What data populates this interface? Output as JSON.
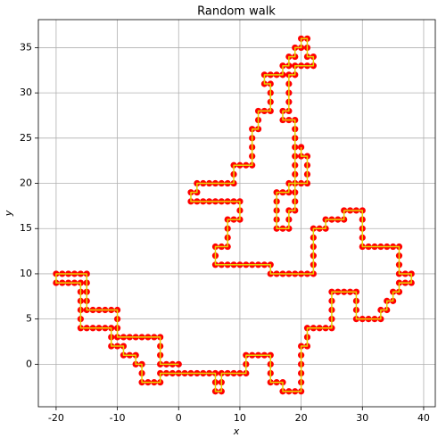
{
  "chart_data": {
    "type": "line",
    "title": "Random walk",
    "x_label": "x",
    "y_label": "y",
    "x": [
      0,
      -1,
      -2,
      -3,
      -3,
      -3,
      -3,
      -4,
      -5,
      -6,
      -7,
      -8,
      -9,
      -10,
      -10,
      -10,
      -10,
      -11,
      -12,
      -13,
      -14,
      -15,
      -15,
      -15,
      -15,
      -15,
      -16,
      -17,
      -18,
      -19,
      -20,
      -20,
      -19,
      -18,
      -17,
      -16,
      -16,
      -16,
      -16,
      -16,
      -16,
      -15,
      -14,
      -13,
      -12,
      -11,
      -11,
      -11,
      -10,
      -9,
      -9,
      -8,
      -7,
      -7,
      -6,
      -6,
      -6,
      -5,
      -4,
      -3,
      -3,
      -2,
      -1,
      0,
      1,
      2,
      3,
      4,
      5,
      6,
      6,
      6,
      7,
      7,
      7,
      8,
      9,
      10,
      11,
      11,
      11,
      12,
      13,
      14,
      15,
      15,
      15,
      15,
      16,
      17,
      17,
      18,
      19,
      20,
      20,
      20,
      20,
      20,
      20,
      21,
      21,
      21,
      22,
      23,
      24,
      25,
      25,
      25,
      25,
      25,
      26,
      27,
      28,
      29,
      29,
      29,
      29,
      30,
      31,
      32,
      33,
      33,
      34,
      34,
      35,
      35,
      36,
      36,
      37,
      38,
      38,
      37,
      36,
      36,
      36,
      36,
      35,
      34,
      33,
      32,
      31,
      30,
      30,
      30,
      30,
      30,
      29,
      28,
      27,
      27,
      26,
      25,
      24,
      24,
      23,
      22,
      22,
      22,
      22,
      22,
      22,
      21,
      20,
      19,
      18,
      17,
      16,
      15,
      15,
      14,
      13,
      12,
      11,
      10,
      9,
      8,
      7,
      6,
      6,
      6,
      7,
      8,
      8,
      8,
      8,
      9,
      10,
      10,
      10,
      9,
      8,
      7,
      6,
      5,
      4,
      3,
      2,
      2,
      3,
      3,
      4,
      5,
      6,
      7,
      8,
      9,
      9,
      9,
      10,
      11,
      12,
      12,
      12,
      12,
      12,
      13,
      13,
      13,
      14,
      15,
      15,
      15,
      15,
      14,
      14,
      15,
      16,
      17,
      17,
      18,
      18,
      19,
      19,
      20,
      20,
      21,
      21,
      21,
      22,
      22,
      21,
      20,
      19,
      19,
      18,
      18,
      18,
      18,
      18,
      17,
      17,
      18,
      19,
      19,
      19,
      19,
      19,
      19,
      19,
      19,
      19,
      19,
      19,
      18,
      18,
      18,
      17,
      16,
      16,
      16,
      16,
      16,
      17,
      18,
      18,
      19,
      20,
      21,
      21,
      21,
      21,
      20,
      20
    ],
    "values": [
      0,
      0,
      0,
      0,
      1,
      2,
      3,
      3,
      3,
      3,
      3,
      3,
      3,
      3,
      4,
      5,
      6,
      6,
      6,
      6,
      6,
      6,
      7,
      8,
      9,
      10,
      10,
      10,
      10,
      10,
      10,
      9,
      9,
      9,
      9,
      9,
      8,
      7,
      6,
      5,
      4,
      4,
      4,
      4,
      4,
      4,
      3,
      2,
      2,
      2,
      1,
      1,
      1,
      0,
      0,
      -1,
      -2,
      -2,
      -2,
      -2,
      -1,
      -1,
      -1,
      -1,
      -1,
      -1,
      -1,
      -1,
      -1,
      -1,
      -2,
      -3,
      -3,
      -2,
      -1,
      -1,
      -1,
      -1,
      -1,
      0,
      1,
      1,
      1,
      1,
      1,
      0,
      -1,
      -2,
      -2,
      -2,
      -3,
      -3,
      -3,
      -3,
      -2,
      -1,
      0,
      1,
      2,
      2,
      3,
      4,
      4,
      4,
      4,
      4,
      5,
      6,
      7,
      8,
      8,
      8,
      8,
      8,
      7,
      6,
      5,
      5,
      5,
      5,
      5,
      6,
      6,
      7,
      7,
      8,
      8,
      9,
      9,
      9,
      10,
      10,
      10,
      11,
      12,
      13,
      13,
      13,
      13,
      13,
      13,
      13,
      14,
      15,
      16,
      17,
      17,
      17,
      17,
      16,
      16,
      16,
      16,
      15,
      15,
      15,
      14,
      13,
      12,
      11,
      10,
      10,
      10,
      10,
      10,
      10,
      10,
      10,
      11,
      11,
      11,
      11,
      11,
      11,
      11,
      11,
      11,
      11,
      12,
      13,
      13,
      13,
      14,
      15,
      16,
      16,
      16,
      17,
      18,
      18,
      18,
      18,
      18,
      18,
      18,
      18,
      18,
      19,
      19,
      20,
      20,
      20,
      20,
      20,
      20,
      20,
      21,
      22,
      22,
      22,
      22,
      23,
      24,
      25,
      26,
      26,
      27,
      28,
      28,
      28,
      29,
      30,
      31,
      31,
      32,
      32,
      32,
      32,
      33,
      33,
      34,
      34,
      35,
      35,
      36,
      36,
      35,
      34,
      34,
      33,
      33,
      33,
      33,
      32,
      32,
      31,
      30,
      29,
      28,
      28,
      27,
      27,
      27,
      26,
      25,
      24,
      23,
      22,
      21,
      20,
      19,
      18,
      17,
      17,
      16,
      15,
      15,
      15,
      16,
      17,
      18,
      19,
      19,
      19,
      20,
      20,
      20,
      20,
      21,
      22,
      23,
      23,
      24
    ],
    "line_color": "#e6d300",
    "marker_color": "#ff0000",
    "xlim": [
      -22.9,
      41.9
    ],
    "xticks": [
      -20,
      -10,
      0,
      10,
      20,
      30,
      40
    ],
    "ylim": [
      -4.7,
      38.1
    ],
    "yticks": [
      0,
      5,
      10,
      15,
      20,
      25,
      30,
      35
    ],
    "grid": true
  }
}
